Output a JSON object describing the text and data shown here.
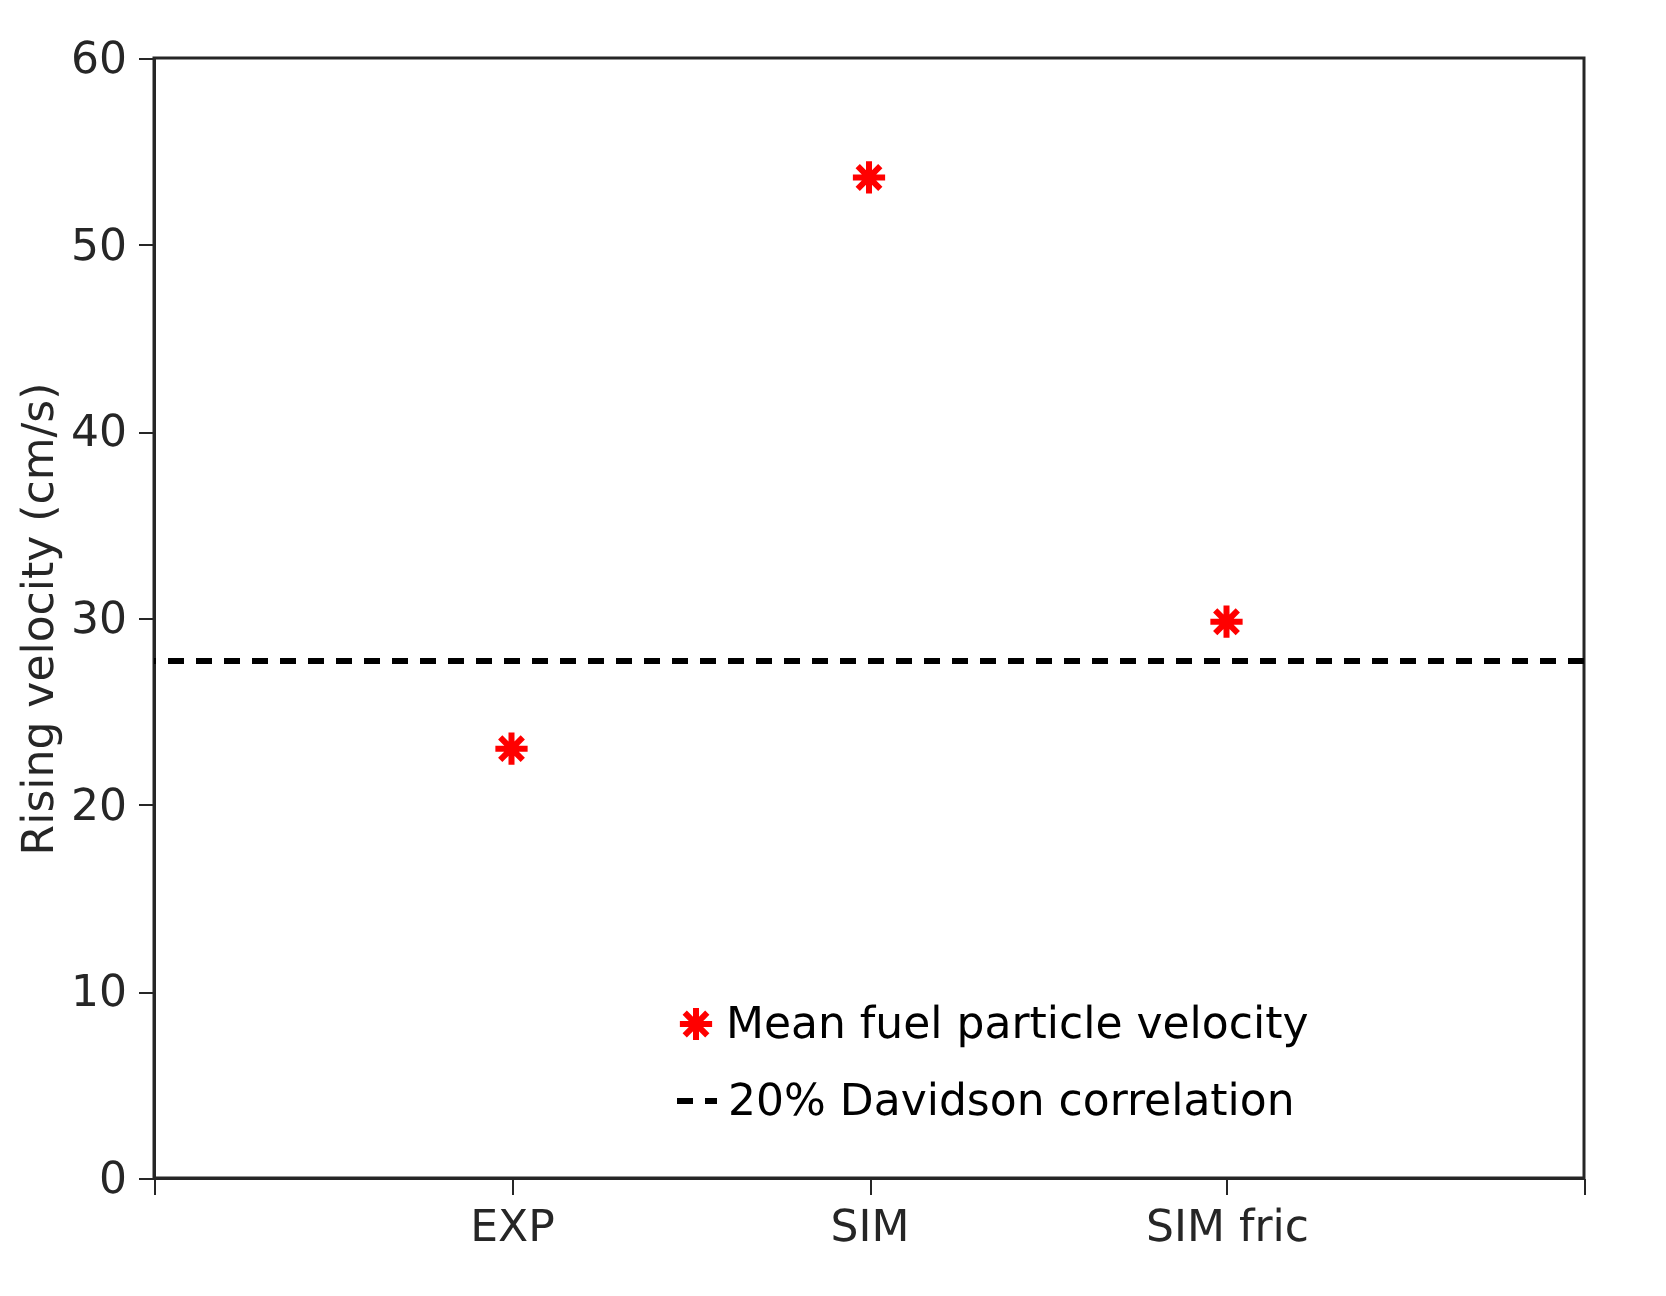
{
  "chart_data": {
    "type": "scatter",
    "ylabel": "Rising velocity (cm/s)",
    "categories": [
      null,
      "EXP",
      "SIM",
      "SIM fric",
      null
    ],
    "series": [
      {
        "name": "Mean fuel particle velocity",
        "color": "#ff0000",
        "values": [
          null,
          23,
          53.6,
          29.8,
          null
        ]
      }
    ],
    "ylim": [
      0,
      60
    ],
    "yticks": [
      0,
      10,
      20,
      30,
      40,
      50,
      60
    ],
    "marker": "cross",
    "legend": "bottom right",
    "ref_lines": [
      {
        "axis": "y",
        "value": 27.7,
        "label": "20% Davidson correlation",
        "color": "#000000",
        "line_style": "dashed"
      }
    ]
  }
}
